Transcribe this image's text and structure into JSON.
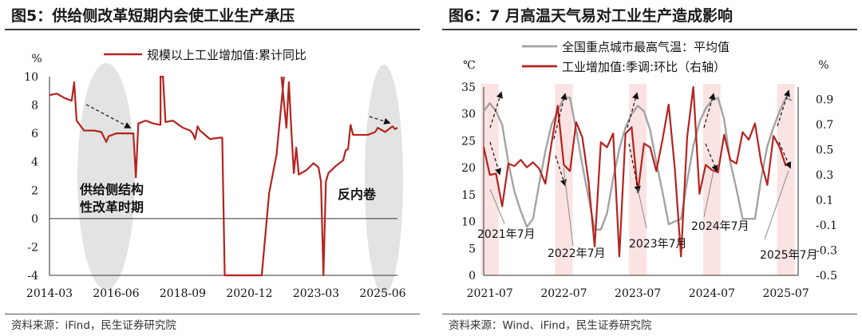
{
  "left": {
    "title": "图5：供给侧改革短期内会使工业生产承压",
    "source": "资料来源：iFind，民生证券研究院",
    "annotations": [
      "供给侧结构",
      "性改革时期",
      "反内卷"
    ]
  },
  "right": {
    "title": "图6：7 月高温天气易对工业生产造成影响",
    "source": "资料来源：Wind、iFind，民生证券研究院",
    "annotations": [
      "2021年7月",
      "2022年7月",
      "2023年7月",
      "2024年7月",
      "2025年7月"
    ]
  },
  "colors": {
    "red": "#b5231e",
    "gray": "#a3a3a3",
    "band": "#fbe3e3",
    "ellipse": "#e3e3e3"
  },
  "chart_data": [
    {
      "type": "line",
      "title": "",
      "ylabel": "%",
      "ylim": [
        -4,
        10
      ],
      "yticks": [
        "-4",
        "-2",
        "0",
        "2",
        "4",
        "6",
        "8",
        "10"
      ],
      "xticks": [
        "2014-03",
        "2016-06",
        "2018-09",
        "2020-12",
        "2023-03",
        "2025-06"
      ],
      "legend": "top",
      "series": [
        {
          "name": "规模以上工业增加值:累计同比",
          "color": "#b5231e",
          "points": [
            [
              "2014-03",
              8.7
            ],
            [
              "2014-06",
              8.8
            ],
            [
              "2014-09",
              8.5
            ],
            [
              "2014-12",
              8.3
            ],
            [
              "2015-01",
              9.6
            ],
            [
              "2015-02",
              6.9
            ],
            [
              "2015-05",
              6.2
            ],
            [
              "2015-09",
              6.2
            ],
            [
              "2015-12",
              6.1
            ],
            [
              "2016-02",
              5.4
            ],
            [
              "2016-03",
              5.8
            ],
            [
              "2016-06",
              6.0
            ],
            [
              "2016-09",
              6.0
            ],
            [
              "2016-12",
              6.0
            ],
            [
              "2017-01",
              6.0
            ],
            [
              "2017-02",
              2.9
            ],
            [
              "2017-03",
              6.7
            ],
            [
              "2017-06",
              6.9
            ],
            [
              "2017-09",
              6.7
            ],
            [
              "2017-12",
              6.6
            ],
            [
              "2017-12",
              10.0
            ],
            [
              "2018-01",
              10.0
            ],
            [
              "2018-02",
              6.8
            ],
            [
              "2018-05",
              6.9
            ],
            [
              "2018-09",
              6.4
            ],
            [
              "2018-12",
              6.2
            ],
            [
              "2019-01",
              6.0
            ],
            [
              "2019-02",
              5.6
            ],
            [
              "2019-03",
              6.5
            ],
            [
              "2019-04",
              6.2
            ],
            [
              "2019-08",
              5.6
            ],
            [
              "2019-12",
              5.7
            ],
            [
              "2020-01",
              5.7
            ],
            [
              "2020-02",
              -4.0
            ],
            [
              "2021-05",
              -4.0
            ],
            [
              "2021-08",
              1.8
            ],
            [
              "2021-11",
              4.5
            ],
            [
              "2022-02",
              10.0
            ]
          ]
        },
        {
          "name": "规模以上工业增加值:累计同比",
          "color": "#b5231e",
          "points": [
            [
              "2022-01",
              10.0
            ],
            [
              "2022-03",
              6.4
            ],
            [
              "2022-04",
              9.6
            ],
            [
              "2022-05",
              6.2
            ],
            [
              "2022-06",
              3.2
            ],
            [
              "2022-07",
              5.0
            ],
            [
              "2022-08",
              3.1
            ],
            [
              "2022-11",
              3.4
            ],
            [
              "2023-02",
              3.9
            ],
            [
              "2023-04",
              3.6
            ],
            [
              "2023-05",
              2.6
            ],
            [
              "2023-06",
              -4.0
            ],
            [
              "2023-07",
              2.6
            ],
            [
              "2023-08",
              3.2
            ],
            [
              "2023-11",
              3.7
            ],
            [
              "2024-02",
              4.1
            ],
            [
              "2024-03",
              4.8
            ],
            [
              "2024-04",
              4.9
            ],
            [
              "2024-05",
              6.6
            ],
            [
              "2024-06",
              5.9
            ],
            [
              "2024-09",
              5.9
            ],
            [
              "2024-12",
              5.9
            ],
            [
              "2025-03",
              6.1
            ],
            [
              "2025-04",
              6.4
            ],
            [
              "2025-07",
              6.1
            ],
            [
              "2025-10",
              6.5
            ],
            [
              "2025-11",
              6.3
            ],
            [
              "2025-12",
              6.4
            ]
          ]
        }
      ]
    },
    {
      "type": "line",
      "title": "",
      "ylabel_left": "℃",
      "ylabel_right": "%",
      "ylim_left": [
        0,
        35
      ],
      "ylim_right": [
        -0.5,
        1.0
      ],
      "yticks_left": [
        "0",
        "5",
        "10",
        "15",
        "20",
        "25",
        "30",
        "35"
      ],
      "yticks_right": [
        "-0.5",
        "-0.3",
        "-0.1",
        "0.1",
        "0.3",
        "0.5",
        "0.7",
        "0.9"
      ],
      "xticks": [
        "2021-07",
        "2022-07",
        "2023-07",
        "2024-07",
        "2025-07"
      ],
      "legend": "top",
      "series": [
        {
          "name": "全国重点城市最高气温：平均值",
          "color": "#a3a3a3",
          "axis": "left",
          "points": [
            [
              "2021-06",
              30.5
            ],
            [
              "2021-07",
              32.0
            ],
            [
              "2021-08",
              30.5
            ],
            [
              "2021-09",
              28.0
            ],
            [
              "2021-10",
              21.0
            ],
            [
              "2021-11",
              15.5
            ],
            [
              "2021-12",
              12.0
            ],
            [
              "2022-01",
              9.0
            ],
            [
              "2022-02",
              10.5
            ],
            [
              "2022-03",
              17.0
            ],
            [
              "2022-04",
              23.0
            ],
            [
              "2022-05",
              28.0
            ],
            [
              "2022-06",
              30.5
            ],
            [
              "2022-07",
              33.0
            ],
            [
              "2022-08",
              33.0
            ],
            [
              "2022-09",
              27.0
            ],
            [
              "2022-10",
              20.5
            ],
            [
              "2022-11",
              14.5
            ],
            [
              "2022-12",
              8.5
            ],
            [
              "2023-01",
              8.5
            ],
            [
              "2023-02",
              11.5
            ],
            [
              "2023-03",
              18.0
            ],
            [
              "2023-04",
              23.5
            ],
            [
              "2023-05",
              27.5
            ],
            [
              "2023-06",
              30.0
            ],
            [
              "2023-07",
              31.5
            ],
            [
              "2023-08",
              30.5
            ],
            [
              "2023-09",
              27.0
            ],
            [
              "2023-10",
              21.0
            ],
            [
              "2023-11",
              15.5
            ],
            [
              "2023-12",
              9.5
            ],
            [
              "2024-01",
              10.0
            ],
            [
              "2024-02",
              10.5
            ],
            [
              "2024-03",
              17.5
            ],
            [
              "2024-04",
              24.0
            ],
            [
              "2024-05",
              28.5
            ],
            [
              "2024-06",
              31.0
            ],
            [
              "2024-07",
              32.5
            ],
            [
              "2024-08",
              33.0
            ],
            [
              "2024-09",
              29.0
            ],
            [
              "2024-10",
              21.0
            ],
            [
              "2024-11",
              16.0
            ],
            [
              "2024-12",
              10.5
            ],
            [
              "2025-01",
              10.5
            ],
            [
              "2025-02",
              10.5
            ],
            [
              "2025-03",
              18.0
            ],
            [
              "2025-04",
              24.0
            ],
            [
              "2025-05",
              27.5
            ],
            [
              "2025-06",
              30.5
            ],
            [
              "2025-07",
              33.0
            ],
            [
              "2025-08",
              32.5
            ]
          ]
        },
        {
          "name": "工业增加值:季调:环比（右轴）",
          "color": "#b5231e",
          "axis": "right",
          "points": [
            [
              "2021-06",
              0.52
            ],
            [
              "2021-07",
              0.3
            ],
            [
              "2021-08",
              0.31
            ],
            [
              "2021-09",
              0.05
            ],
            [
              "2021-10",
              0.39
            ],
            [
              "2021-11",
              0.37
            ],
            [
              "2021-12",
              0.42
            ],
            [
              "2022-01",
              0.36
            ],
            [
              "2022-02",
              0.4
            ],
            [
              "2022-03",
              0.35
            ],
            [
              "2022-04",
              0.23
            ],
            [
              "2022-05",
              0.55
            ],
            [
              "2022-06",
              0.85
            ],
            [
              "2022-07",
              0.38
            ],
            [
              "2022-08",
              0.33
            ],
            [
              "2022-09",
              0.72
            ],
            [
              "2022-10",
              0.6
            ],
            [
              "2022-11",
              0.25
            ],
            [
              "2022-12",
              -0.27
            ],
            [
              "2023-01",
              0.56
            ],
            [
              "2023-02",
              0.52
            ],
            [
              "2023-03",
              0.63
            ],
            [
              "2023-04",
              -0.35
            ],
            [
              "2023-05",
              0.63
            ],
            [
              "2023-06",
              0.68
            ],
            [
              "2023-07",
              0.16
            ],
            [
              "2023-08",
              0.55
            ],
            [
              "2023-09",
              0.52
            ],
            [
              "2023-10",
              0.33
            ],
            [
              "2023-11",
              0.58
            ],
            [
              "2023-12",
              0.86
            ],
            [
              "2024-01",
              0.35
            ],
            [
              "2024-02",
              -0.35
            ],
            [
              "2024-03",
              0.6
            ],
            [
              "2024-04",
              1.0
            ],
            [
              "2024-05",
              0.15
            ],
            [
              "2024-06",
              0.38
            ],
            [
              "2024-07",
              0.34
            ],
            [
              "2024-08",
              0.32
            ],
            [
              "2024-09",
              0.62
            ],
            [
              "2024-10",
              0.42
            ],
            [
              "2024-11",
              0.39
            ],
            [
              "2024-12",
              0.64
            ],
            [
              "2025-01",
              0.58
            ],
            [
              "2025-02",
              0.71
            ],
            [
              "2025-03",
              0.4
            ],
            [
              "2025-04",
              0.22
            ],
            [
              "2025-05",
              0.61
            ],
            [
              "2025-06",
              0.52
            ],
            [
              "2025-07",
              0.37
            ]
          ]
        }
      ]
    }
  ]
}
